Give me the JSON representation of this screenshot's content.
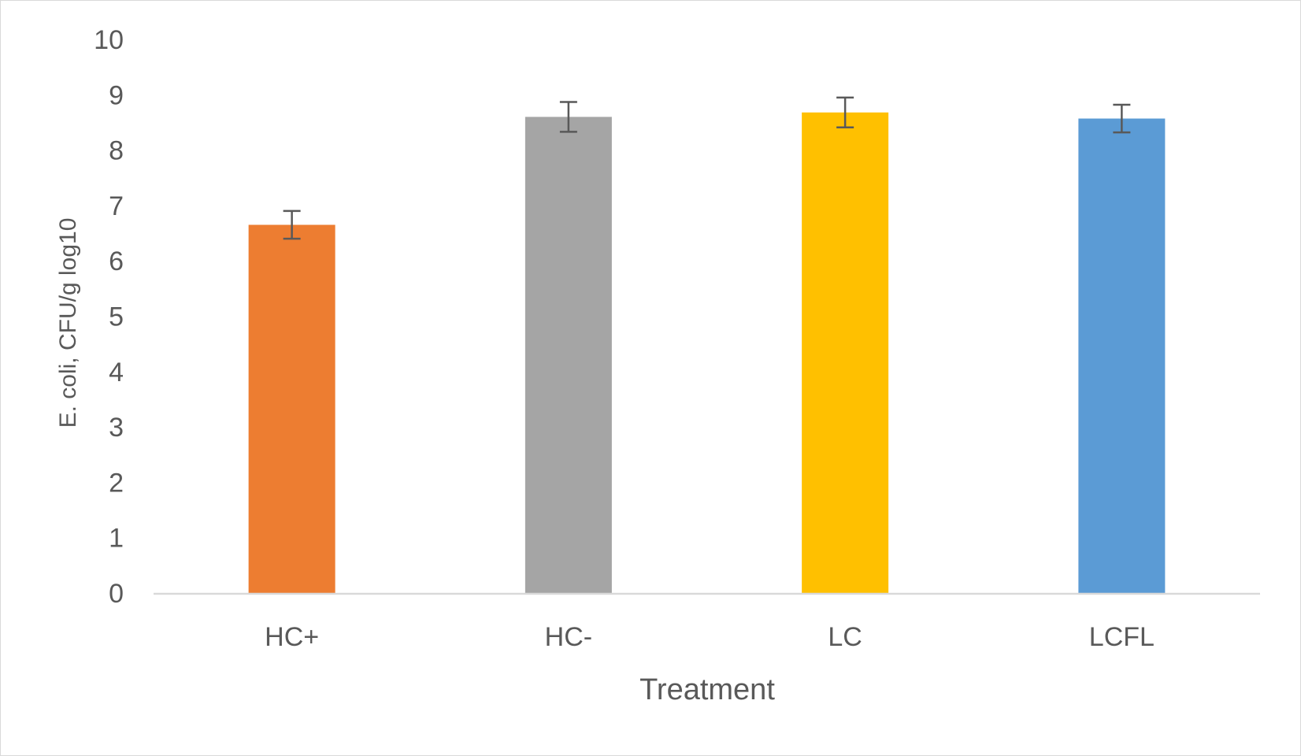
{
  "chart_data": {
    "type": "bar",
    "title": "",
    "xlabel": "Treatment",
    "ylabel": "E. coli, CFU/g log10",
    "ylim": [
      0,
      10
    ],
    "yticks": [
      0,
      1,
      2,
      3,
      4,
      5,
      6,
      7,
      8,
      9,
      10
    ],
    "grid": false,
    "legend": "none",
    "categories": [
      "HC+",
      "HC-",
      "LC",
      "LCFL"
    ],
    "values": [
      6.65,
      8.6,
      8.68,
      8.57
    ],
    "error": [
      0.25,
      0.27,
      0.27,
      0.25
    ],
    "colors": [
      "#ED7D31",
      "#A5A5A5",
      "#FFC000",
      "#5B9BD5"
    ],
    "axis_color": "#d9d9d9",
    "error_bar_color": "#595959",
    "text_color": "#595959"
  }
}
